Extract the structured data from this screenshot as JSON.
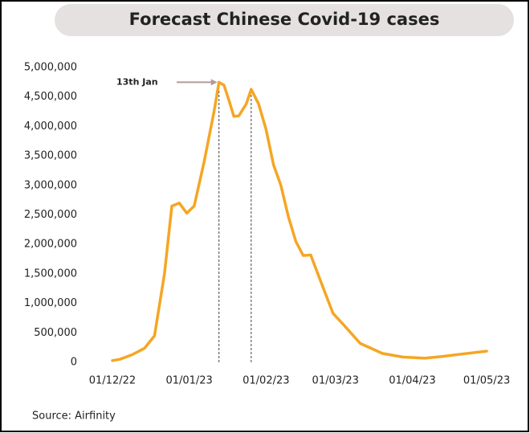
{
  "chart_data": {
    "type": "line",
    "title": "Forecast Chinese Covid-19 cases",
    "source": "Source:  Airfinity",
    "annotation": {
      "text": "13th Jan",
      "x": "2023-01-13"
    },
    "vlines": [
      "2023-01-13",
      "2023-01-26"
    ],
    "color": "#f5a623",
    "x": [
      "2022-12-01",
      "2022-12-04",
      "2022-12-09",
      "2022-12-14",
      "2022-12-18",
      "2022-12-22",
      "2022-12-25",
      "2022-12-28",
      "2022-12-31",
      "2023-01-03",
      "2023-01-07",
      "2023-01-11",
      "2023-01-13",
      "2023-01-15",
      "2023-01-17",
      "2023-01-19",
      "2023-01-21",
      "2023-01-24",
      "2023-01-26",
      "2023-01-29",
      "2023-02-01",
      "2023-02-04",
      "2023-02-07",
      "2023-02-10",
      "2023-02-13",
      "2023-02-16",
      "2023-02-19",
      "2023-02-23",
      "2023-02-28",
      "2023-03-04",
      "2023-03-11",
      "2023-03-20",
      "2023-03-28",
      "2023-04-06",
      "2023-04-13",
      "2023-04-21",
      "2023-05-01"
    ],
    "values": [
      30000,
      50000,
      130000,
      240000,
      450000,
      1500000,
      2650000,
      2700000,
      2530000,
      2650000,
      3400000,
      4250000,
      4750000,
      4700000,
      4450000,
      4170000,
      4180000,
      4380000,
      4630000,
      4380000,
      3950000,
      3350000,
      3000000,
      2470000,
      2050000,
      1810000,
      1820000,
      1380000,
      830000,
      650000,
      320000,
      150000,
      90000,
      70000,
      100000,
      140000,
      190000
    ],
    "xlim": [
      "2022-11-20",
      "2023-05-12"
    ],
    "xticks": [
      {
        "value": "2022-12-01",
        "label": "01/12/22"
      },
      {
        "value": "2023-01-01",
        "label": "01/01/23"
      },
      {
        "value": "2023-02-01",
        "label": "01/02/23"
      },
      {
        "value": "2023-03-01",
        "label": "01/03/23"
      },
      {
        "value": "2023-04-01",
        "label": "01/04/23"
      },
      {
        "value": "2023-05-01",
        "label": "01/05/23"
      }
    ],
    "ylim": [
      0,
      5000000
    ],
    "yticks": [
      0,
      {
        "value": 500000,
        "label": "500,000"
      },
      {
        "value": 1000000,
        "label": "1,000,000"
      },
      {
        "value": 1500000,
        "label": "1,500,000"
      },
      {
        "value": 2000000,
        "label": "2,000,000"
      },
      {
        "value": 2500000,
        "label": "2,500,000"
      },
      {
        "value": 3000000,
        "label": "3,000,000"
      },
      {
        "value": 3500000,
        "label": "3,500,000"
      },
      {
        "value": 4000000,
        "label": "4,000,000"
      },
      {
        "value": 4500000,
        "label": "4,500,000"
      },
      {
        "value": 5000000,
        "label": "5,000,000"
      }
    ],
    "grid": false
  }
}
